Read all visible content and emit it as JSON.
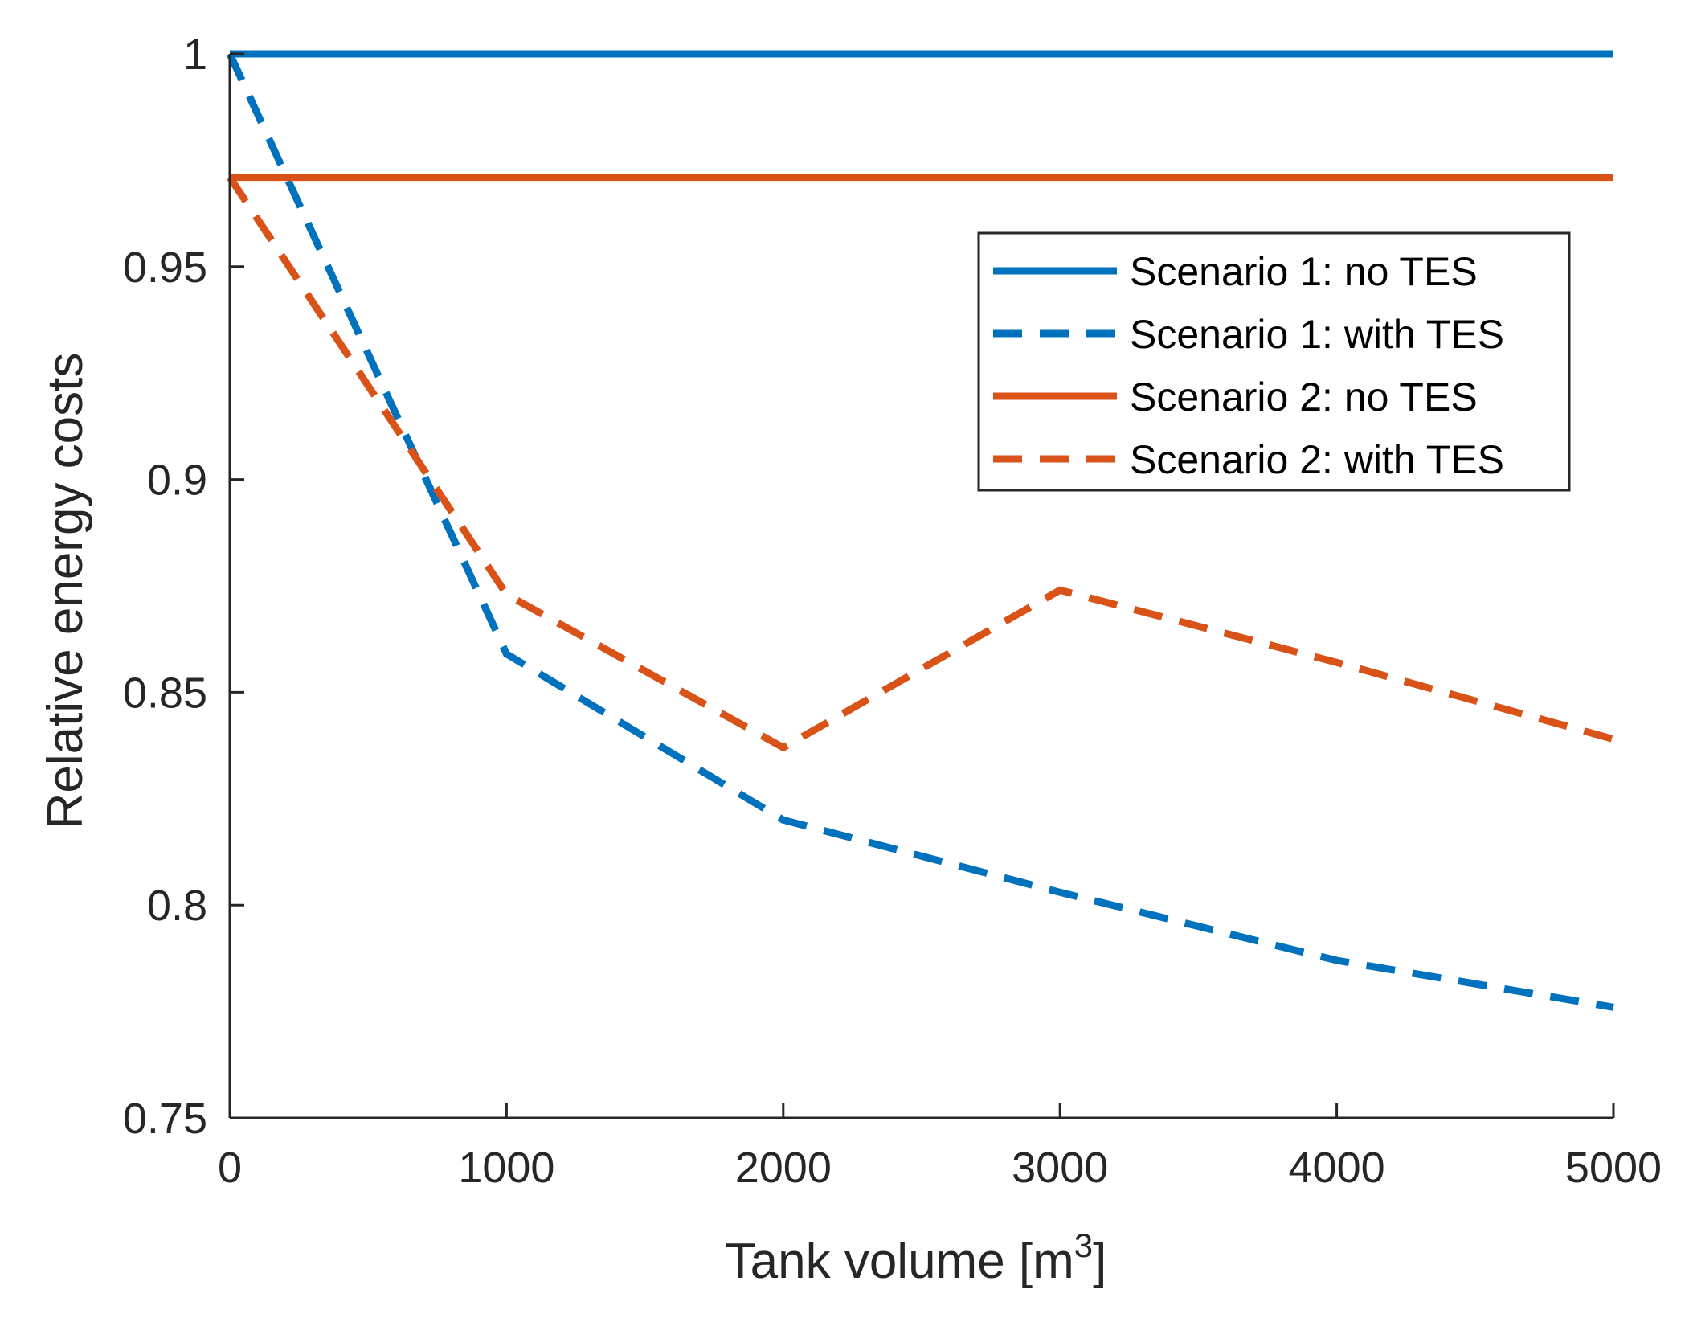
{
  "chart_data": {
    "type": "line",
    "title": "",
    "xlabel": "Tank volume [m",
    "xlabel_superscript": "3",
    "xlabel_suffix": "]",
    "ylabel": "Relative energy costs",
    "xlim": [
      0,
      5000
    ],
    "ylim": [
      0.75,
      1
    ],
    "xticks": [
      0,
      1000,
      2000,
      3000,
      4000,
      5000
    ],
    "xtick_labels": [
      "0",
      "1000",
      "2000",
      "3000",
      "4000",
      "5000"
    ],
    "yticks": [
      0.75,
      0.8,
      0.85,
      0.9,
      0.95,
      1
    ],
    "ytick_labels": [
      "0.75",
      "0.8",
      "0.85",
      "0.9",
      "0.95",
      "1"
    ],
    "grid": false,
    "legend_position": "top-right",
    "series": [
      {
        "name": "Scenario 1: no TES",
        "color": "#0072BD",
        "style": "solid",
        "x": [
          0,
          5000
        ],
        "y": [
          1.0,
          1.0
        ]
      },
      {
        "name": "Scenario 1: with TES",
        "color": "#0072BD",
        "style": "dashed",
        "x": [
          0,
          1000,
          2000,
          3000,
          4000,
          5000
        ],
        "y": [
          1.0,
          0.859,
          0.82,
          0.803,
          0.787,
          0.776
        ]
      },
      {
        "name": "Scenario 2: no TES",
        "color": "#D95319",
        "style": "solid",
        "x": [
          0,
          5000
        ],
        "y": [
          0.971,
          0.971
        ]
      },
      {
        "name": "Scenario 2: with TES",
        "color": "#D95319",
        "style": "dashed",
        "x": [
          0,
          1000,
          2000,
          3000,
          4000,
          5000
        ],
        "y": [
          0.971,
          0.873,
          0.837,
          0.874,
          0.857,
          0.839
        ]
      }
    ]
  }
}
